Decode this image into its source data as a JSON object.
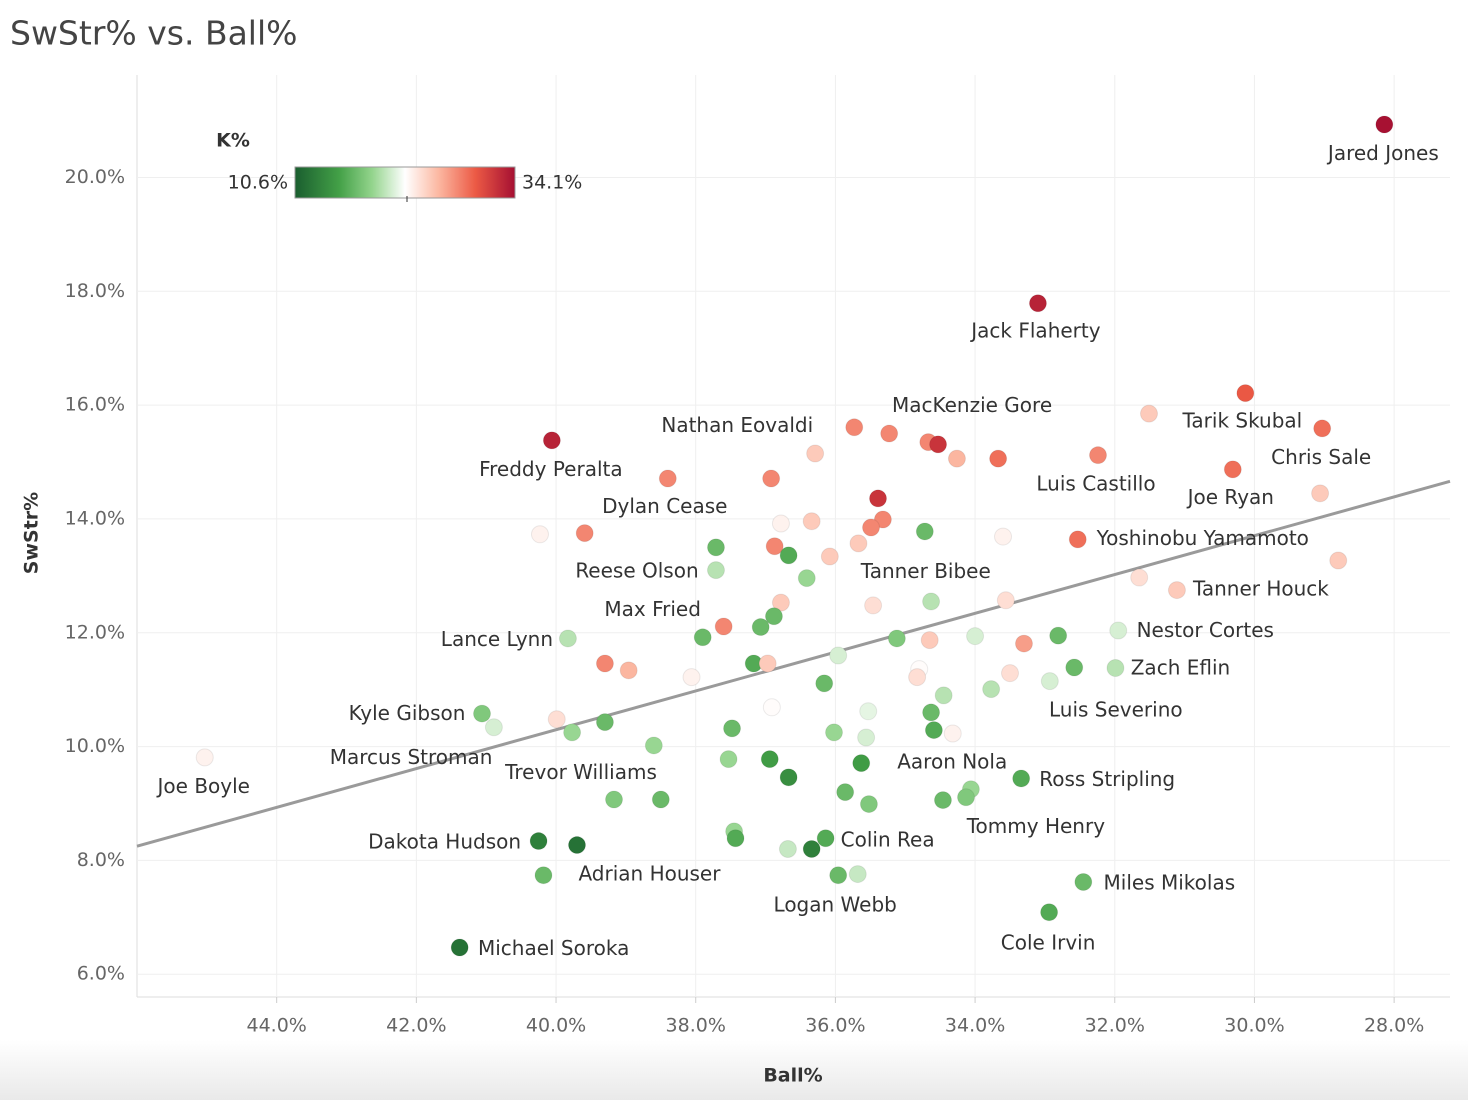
{
  "chart_data": {
    "type": "scatter",
    "title": "SwStr% vs. Ball%",
    "x_label": "Ball%",
    "y_label": "SwStr%",
    "xlim": [
      46,
      27.2
    ],
    "ylim": [
      5.6,
      21.8
    ],
    "xticks": [
      {
        "value": 44,
        "label": "44.0%"
      },
      {
        "value": 42,
        "label": "42.0%"
      },
      {
        "value": 40,
        "label": "40.0%"
      },
      {
        "value": 38,
        "label": "38.0%"
      },
      {
        "value": 36,
        "label": "36.0%"
      },
      {
        "value": 34,
        "label": "34.0%"
      },
      {
        "value": 32,
        "label": "32.0%"
      },
      {
        "value": 30,
        "label": "30.0%"
      },
      {
        "value": 28,
        "label": "28.0%"
      }
    ],
    "yticks": [
      {
        "value": 6,
        "label": "6.0%"
      },
      {
        "value": 8,
        "label": "8.0%"
      },
      {
        "value": 10,
        "label": "10.0%"
      },
      {
        "value": 12,
        "label": "12.0%"
      },
      {
        "value": 14,
        "label": "14.0%"
      },
      {
        "value": 16,
        "label": "16.0%"
      },
      {
        "value": 18,
        "label": "18.0%"
      },
      {
        "value": 20,
        "label": "20.0%"
      }
    ],
    "grid": true,
    "color_legend": {
      "title": "K%",
      "min": 10.6,
      "max": 34.1,
      "min_label": "10.6%",
      "max_label": "34.1%"
    },
    "trend_line": {
      "x": [
        46,
        27.2
      ],
      "y": [
        8.25,
        14.66
      ],
      "color": "#9a9a9a"
    },
    "x": [
      28.14,
      33.1,
      30.13,
      31.51,
      29.03,
      40.06,
      35.73,
      35.23,
      34.67,
      34.53,
      34.26,
      33.67,
      32.24,
      30.31,
      36.29,
      38.4,
      36.92,
      35.39,
      29.06,
      40.23,
      39.59,
      37.71,
      36.78,
      36.34,
      35.32,
      35.49,
      34.72,
      33.6,
      32.53,
      36.87,
      36.67,
      36.08,
      35.67,
      37.71,
      36.41,
      31.65,
      28.8,
      31.11,
      36.78,
      36.88,
      35.46,
      34.63,
      33.56,
      37.6,
      37.07,
      37.9,
      39.83,
      35.12,
      34.65,
      34.0,
      33.3,
      32.81,
      31.95,
      39.3,
      38.96,
      37.17,
      36.97,
      35.96,
      38.06,
      36.16,
      34.8,
      34.83,
      33.5,
      32.58,
      31.99,
      32.93,
      33.77,
      34.45,
      36.91,
      35.53,
      34.63,
      41.06,
      40.89,
      39.99,
      39.3,
      37.48,
      34.59,
      39.77,
      34.32,
      36.02,
      35.56,
      38.6,
      45.03,
      37.53,
      36.94,
      35.63,
      36.67,
      33.34,
      34.06,
      34.13,
      34.46,
      35.86,
      35.52,
      39.17,
      38.5,
      37.45,
      37.43,
      36.14,
      40.25,
      39.7,
      36.68,
      36.34,
      40.18,
      35.96,
      35.68,
      32.45,
      32.94,
      41.38
    ],
    "y": [
      20.93,
      17.79,
      16.21,
      15.85,
      15.59,
      15.38,
      15.61,
      15.5,
      15.35,
      15.31,
      15.06,
      15.06,
      15.12,
      14.87,
      15.15,
      14.71,
      14.71,
      14.36,
      14.45,
      13.73,
      13.75,
      13.5,
      13.92,
      13.96,
      13.99,
      13.85,
      13.78,
      13.69,
      13.64,
      13.52,
      13.36,
      13.34,
      13.57,
      13.1,
      12.96,
      12.97,
      13.27,
      12.75,
      12.53,
      12.29,
      12.48,
      12.55,
      12.57,
      12.11,
      12.1,
      11.92,
      11.9,
      11.9,
      11.87,
      11.94,
      11.81,
      11.95,
      12.04,
      11.46,
      11.34,
      11.46,
      11.46,
      11.6,
      11.22,
      11.11,
      11.36,
      11.22,
      11.29,
      11.39,
      11.38,
      11.15,
      11.01,
      10.9,
      10.69,
      10.62,
      10.6,
      10.58,
      10.34,
      10.48,
      10.43,
      10.32,
      10.29,
      10.25,
      10.23,
      10.25,
      10.16,
      10.02,
      9.81,
      9.78,
      9.78,
      9.71,
      9.46,
      9.44,
      9.25,
      9.11,
      9.06,
      9.2,
      8.99,
      9.07,
      9.07,
      8.51,
      8.39,
      8.39,
      8.34,
      8.27,
      8.2,
      8.2,
      7.74,
      7.74,
      7.76,
      7.62,
      7.09,
      6.47
    ],
    "k": [
      34,
      33,
      30,
      25,
      29,
      33,
      28,
      28,
      28,
      32,
      26,
      29,
      28,
      29,
      25,
      28,
      28,
      32,
      25,
      23,
      28,
      17,
      23,
      25,
      28,
      28,
      17,
      23,
      29,
      28,
      16,
      25,
      25,
      20,
      19,
      24,
      25,
      25,
      25,
      17,
      24,
      20,
      24,
      28,
      17,
      17,
      20,
      18,
      25,
      21,
      27,
      17,
      21,
      28,
      26,
      16,
      25,
      21,
      23,
      17,
      22.5,
      24,
      24,
      17,
      20,
      21,
      20,
      20,
      22.5,
      21.5,
      17,
      18,
      21,
      24,
      17,
      17,
      16,
      19,
      23,
      19,
      21,
      19,
      23,
      19,
      15,
      15,
      14,
      16,
      19,
      18,
      17,
      17,
      18,
      18,
      17,
      19,
      16,
      16,
      13,
      12,
      20.5,
      13,
      17,
      17,
      20.5,
      17,
      16,
      12
    ],
    "labels": [
      "Jared Jones",
      "Jack Flaherty",
      "Tarik Skubal",
      null,
      "Chris Sale",
      "Freddy Peralta",
      "Nathan Eovaldi",
      null,
      null,
      "MacKenzie Gore",
      null,
      null,
      "Luis Castillo",
      "Joe Ryan",
      null,
      "Dylan Cease",
      null,
      null,
      null,
      null,
      null,
      null,
      null,
      null,
      null,
      null,
      "Tanner Bibee",
      null,
      "Yoshinobu Yamamoto",
      null,
      null,
      null,
      null,
      "Reese Olson",
      null,
      null,
      null,
      "Tanner Houck",
      null,
      null,
      null,
      null,
      null,
      "Max Fried",
      null,
      null,
      "Lance Lynn",
      null,
      null,
      null,
      null,
      null,
      "Nestor Cortes",
      null,
      null,
      null,
      null,
      null,
      null,
      null,
      null,
      null,
      null,
      null,
      "Zach Eflin",
      "Luis Severino",
      null,
      null,
      null,
      null,
      null,
      "Kyle Gibson",
      null,
      null,
      null,
      null,
      null,
      "Marcus Stroman",
      null,
      null,
      null,
      null,
      "Joe Boyle",
      null,
      null,
      "Aaron Nola",
      null,
      "Ross Stripling",
      "Tommy Henry",
      null,
      null,
      null,
      null,
      "Trevor Williams",
      null,
      null,
      null,
      "Colin Rea",
      "Dakota Hudson",
      null,
      null,
      null,
      "Adrian Houser",
      "Logan Webb",
      null,
      "Miles Mikolas",
      "Cole Irvin",
      "Michael Soroka"
    ]
  }
}
